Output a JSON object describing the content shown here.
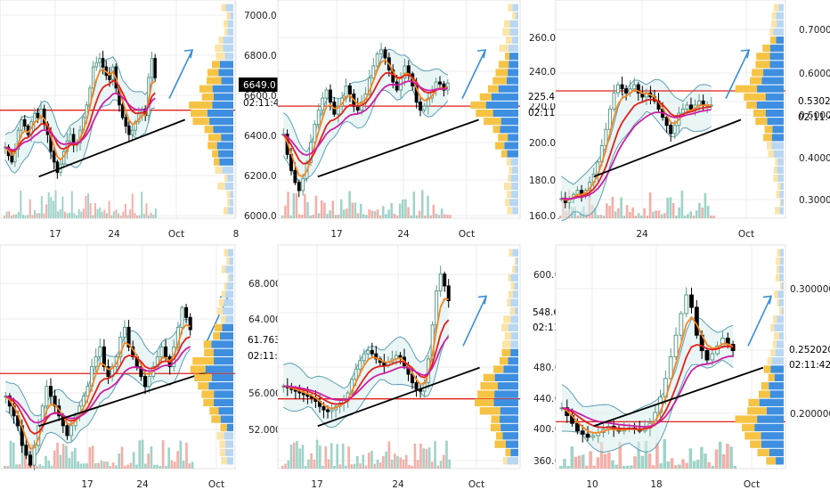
{
  "colors": {
    "up": "#5b9a8b",
    "down": "#000000",
    "ema_fast": "#f5861f",
    "ema_mid": "#e2211c",
    "ema_slow": "#cc1fa6",
    "bollinger": "#5b9fb3",
    "bollinger_fill": "#dcefee",
    "trendline": "#000000",
    "arrow": "#3b8ed8",
    "hline": "#e2211c",
    "vp_sell": "#f6c344",
    "vp_buy": "#3e8fe0",
    "vp_sell_light": "#fbe4a6",
    "vp_buy_light": "#b9d7f2",
    "vol_up": "#8fcbc0",
    "vol_down": "#f0a29a",
    "grid": "#ececec"
  },
  "chart_data": [
    {
      "type": "candlestick",
      "panel": "top-left",
      "yticks": [
        "7000.0",
        "6800.0",
        "6600.0",
        "6400.0",
        "6200.0",
        "6000.0"
      ],
      "xticks": [
        "17",
        "24",
        "Oct",
        "8"
      ],
      "price_label": "6649.0",
      "countdown": "02:11:42",
      "ylim": [
        6000,
        7000
      ],
      "close_series": [
        6320,
        6280,
        6250,
        6310,
        6400,
        6450,
        6420,
        6380,
        6440,
        6480,
        6460,
        6500,
        6430,
        6380,
        6300,
        6250,
        6200,
        6240,
        6300,
        6350,
        6380,
        6330,
        6340,
        6400,
        6460,
        6520,
        6600,
        6700,
        6720,
        6740,
        6700,
        6660,
        6640,
        6700,
        6600,
        6520,
        6460,
        6420,
        6380,
        6400,
        6440,
        6480,
        6500,
        6470,
        6650,
        6740,
        6649
      ],
      "hline": 6495
    },
    {
      "type": "candlestick",
      "panel": "top-middle",
      "yticks": [
        "260.00",
        "240.00",
        "220.00",
        "200.00",
        "180.00",
        "160.00"
      ],
      "xticks": [
        "17",
        "24",
        "Oct"
      ],
      "price_label": "225.49",
      "countdown": "02:11:42",
      "ylim": [
        160,
        265
      ],
      "close_series": [
        200,
        190,
        182,
        176,
        172,
        178,
        186,
        196,
        205,
        212,
        218,
        222,
        216,
        210,
        214,
        218,
        224,
        220,
        214,
        212,
        216,
        220,
        228,
        234,
        240,
        242,
        238,
        232,
        226,
        222,
        228,
        234,
        230,
        224,
        216,
        212,
        214,
        218,
        222,
        226,
        225,
        222,
        225.5
      ],
      "hline": 214
    },
    {
      "type": "candlestick",
      "panel": "top-right",
      "yticks": [
        "0.70000",
        "0.60000",
        "0.53025",
        "0.50000",
        "0.40000",
        "0.30000"
      ],
      "xticks": [
        "24",
        "Oct"
      ],
      "price_label": "0.53025",
      "countdown": "02:11:42",
      "ylim": [
        0.26,
        0.78
      ],
      "close_series": [
        0.3,
        0.29,
        0.3,
        0.31,
        0.32,
        0.31,
        0.32,
        0.34,
        0.36,
        0.39,
        0.43,
        0.47,
        0.52,
        0.56,
        0.58,
        0.57,
        0.56,
        0.57,
        0.58,
        0.56,
        0.55,
        0.56,
        0.55,
        0.54,
        0.52,
        0.5,
        0.48,
        0.46,
        0.48,
        0.51,
        0.52,
        0.53,
        0.52,
        0.53,
        0.54,
        0.53,
        0.53,
        0.53
      ],
      "hline": 0.565
    },
    {
      "type": "candlestick",
      "panel": "bottom-left",
      "yticks": [
        "68.000",
        "64.000",
        "61.763",
        "56.000",
        "52.000"
      ],
      "xticks": [
        "17",
        "24",
        "Oct"
      ],
      "price_label": "61.763",
      "countdown": "02:11:42",
      "ylim": [
        48,
        70
      ],
      "close_series": [
        55,
        54,
        53,
        52,
        50,
        49,
        48,
        50,
        52,
        54,
        56,
        55,
        54,
        53,
        52,
        51,
        52,
        53,
        54,
        55,
        56,
        58,
        59,
        60,
        58,
        57,
        58,
        59,
        61,
        62,
        60,
        59,
        58,
        57,
        56,
        57,
        58,
        59,
        60,
        59,
        58,
        60,
        62,
        64,
        63,
        61.763
      ],
      "hline": 57.3
    },
    {
      "type": "candlestick",
      "panel": "bottom-middle",
      "yticks": [
        "600.0",
        "548.6",
        "480.0",
        "440.0",
        "400.0",
        "360.0"
      ],
      "xticks": [
        "17",
        "24",
        "Oct"
      ],
      "price_label": "548.6",
      "countdown": "02:11:4",
      "ylim": [
        355,
        610
      ],
      "close_series": [
        448,
        446,
        444,
        442,
        440,
        438,
        436,
        434,
        430,
        424,
        420,
        418,
        420,
        424,
        428,
        432,
        440,
        456,
        468,
        478,
        486,
        490,
        486,
        480,
        476,
        472,
        476,
        480,
        484,
        482,
        472,
        462,
        452,
        444,
        442,
        452,
        480,
        520,
        560,
        580,
        566,
        548.6
      ],
      "hline": 433
    },
    {
      "type": "candlestick",
      "panel": "bottom-right",
      "yticks": [
        "0.30000000",
        "0.25202000",
        "0.20000000"
      ],
      "xticks": [
        "10",
        "18",
        "Oct"
      ],
      "price_label": "0.25202000",
      "countdown": "02:11:42",
      "ylim": [
        0.178,
        0.318
      ],
      "close_series": [
        0.215,
        0.21,
        0.205,
        0.2,
        0.198,
        0.196,
        0.197,
        0.199,
        0.201,
        0.203,
        0.201,
        0.2,
        0.201,
        0.202,
        0.201,
        0.2,
        0.202,
        0.205,
        0.212,
        0.222,
        0.234,
        0.248,
        0.262,
        0.276,
        0.288,
        0.28,
        0.262,
        0.252,
        0.246,
        0.25,
        0.255,
        0.26,
        0.256,
        0.252
      ],
      "hline": 0.206
    }
  ]
}
